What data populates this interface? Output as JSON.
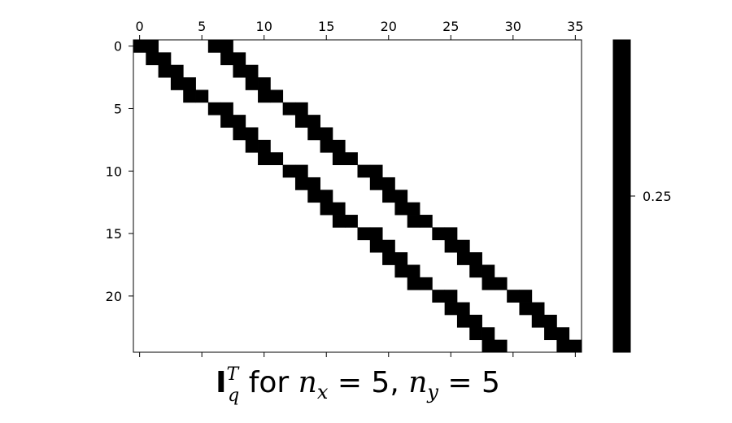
{
  "chart_data": {
    "type": "heatmap",
    "title": {
      "symbol": "I",
      "sup": "T",
      "sub": "q",
      "for_text": " for ",
      "nx_var": "n",
      "nx_sub": "x",
      "nx_eq": " = 5, ",
      "ny_var": "n",
      "ny_sub": "y",
      "ny_eq": " = 5"
    },
    "n_rows": 25,
    "n_cols": 36,
    "x_ticks": [
      0,
      5,
      10,
      15,
      20,
      25,
      30,
      35
    ],
    "y_ticks": [
      0,
      5,
      10,
      15,
      20
    ],
    "x_axis_position": "top",
    "fill_value": 0.25,
    "nonzero_cells": [
      [
        0,
        0
      ],
      [
        0,
        1
      ],
      [
        0,
        6
      ],
      [
        0,
        7
      ],
      [
        1,
        1
      ],
      [
        1,
        2
      ],
      [
        1,
        7
      ],
      [
        1,
        8
      ],
      [
        2,
        2
      ],
      [
        2,
        3
      ],
      [
        2,
        8
      ],
      [
        2,
        9
      ],
      [
        3,
        3
      ],
      [
        3,
        4
      ],
      [
        3,
        9
      ],
      [
        3,
        10
      ],
      [
        4,
        4
      ],
      [
        4,
        5
      ],
      [
        4,
        10
      ],
      [
        4,
        11
      ],
      [
        5,
        6
      ],
      [
        5,
        7
      ],
      [
        5,
        12
      ],
      [
        5,
        13
      ],
      [
        6,
        7
      ],
      [
        6,
        8
      ],
      [
        6,
        13
      ],
      [
        6,
        14
      ],
      [
        7,
        8
      ],
      [
        7,
        9
      ],
      [
        7,
        14
      ],
      [
        7,
        15
      ],
      [
        8,
        9
      ],
      [
        8,
        10
      ],
      [
        8,
        15
      ],
      [
        8,
        16
      ],
      [
        9,
        10
      ],
      [
        9,
        11
      ],
      [
        9,
        16
      ],
      [
        9,
        17
      ],
      [
        10,
        12
      ],
      [
        10,
        13
      ],
      [
        10,
        18
      ],
      [
        10,
        19
      ],
      [
        11,
        13
      ],
      [
        11,
        14
      ],
      [
        11,
        19
      ],
      [
        11,
        20
      ],
      [
        12,
        14
      ],
      [
        12,
        15
      ],
      [
        12,
        20
      ],
      [
        12,
        21
      ],
      [
        13,
        15
      ],
      [
        13,
        16
      ],
      [
        13,
        21
      ],
      [
        13,
        22
      ],
      [
        14,
        16
      ],
      [
        14,
        17
      ],
      [
        14,
        22
      ],
      [
        14,
        23
      ],
      [
        15,
        18
      ],
      [
        15,
        19
      ],
      [
        15,
        24
      ],
      [
        15,
        25
      ],
      [
        16,
        19
      ],
      [
        16,
        20
      ],
      [
        16,
        25
      ],
      [
        16,
        26
      ],
      [
        17,
        20
      ],
      [
        17,
        21
      ],
      [
        17,
        26
      ],
      [
        17,
        27
      ],
      [
        18,
        21
      ],
      [
        18,
        22
      ],
      [
        18,
        27
      ],
      [
        18,
        28
      ],
      [
        19,
        22
      ],
      [
        19,
        23
      ],
      [
        19,
        28
      ],
      [
        19,
        29
      ],
      [
        20,
        24
      ],
      [
        20,
        25
      ],
      [
        20,
        30
      ],
      [
        20,
        31
      ],
      [
        21,
        25
      ],
      [
        21,
        26
      ],
      [
        21,
        31
      ],
      [
        21,
        32
      ],
      [
        22,
        26
      ],
      [
        22,
        27
      ],
      [
        22,
        32
      ],
      [
        22,
        33
      ],
      [
        23,
        27
      ],
      [
        23,
        28
      ],
      [
        23,
        33
      ],
      [
        23,
        34
      ],
      [
        24,
        28
      ],
      [
        24,
        29
      ],
      [
        24,
        34
      ],
      [
        24,
        35
      ]
    ],
    "colors": {
      "filled": "#000000",
      "empty": "#ffffff"
    },
    "colorbar": {
      "ticks": [
        0.25
      ],
      "tick_labels": [
        "0.25"
      ],
      "color": "#000000"
    },
    "grid": false
  }
}
